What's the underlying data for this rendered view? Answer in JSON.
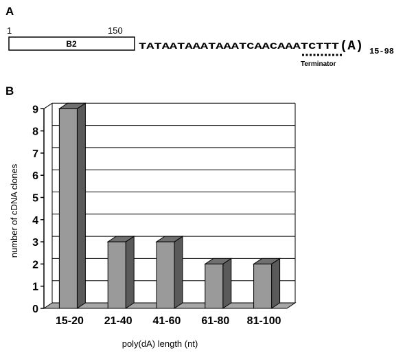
{
  "panel_a": {
    "label": "A",
    "start_number": "1",
    "end_number": "150",
    "element_name": "B2",
    "sequence": "TATAATAAATAAATCAACAAATCTTT",
    "polya": "(A)",
    "polya_range": "15-98",
    "terminator_label": "Terminator"
  },
  "panel_b": {
    "label": "B"
  },
  "chart_data": {
    "type": "bar",
    "categories": [
      "15-20",
      "21-40",
      "41-60",
      "61-80",
      "81-100"
    ],
    "values": [
      9,
      3,
      3,
      2,
      2
    ],
    "title": "",
    "xlabel": "poly(dA) length (nt)",
    "ylabel": "number of cDNA clones",
    "ylim": [
      0,
      9
    ],
    "yticks": [
      0,
      1,
      2,
      3,
      4,
      5,
      6,
      7,
      8,
      9
    ],
    "grid": true,
    "style": "3d",
    "colors": {
      "bar_front": "#9a9a9a",
      "bar_side": "#5a5a5a",
      "bar_top": "#707070",
      "floor": "#a6a6a6",
      "grid": "#000000"
    }
  }
}
